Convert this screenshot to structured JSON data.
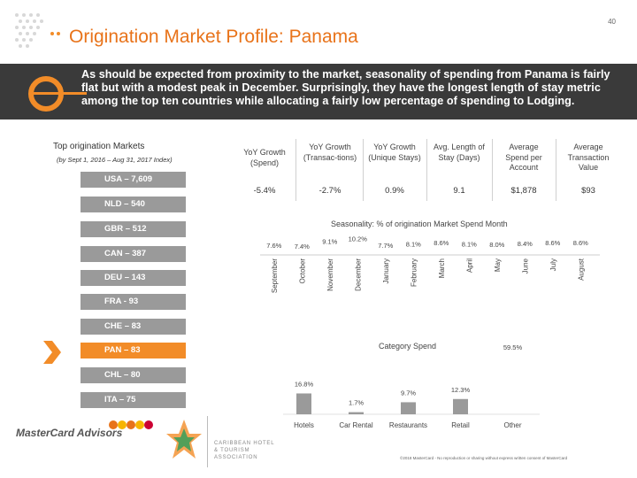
{
  "slide": {
    "number": "40",
    "title": "Origination Market Profile: Panama"
  },
  "banner": {
    "text": "As should be expected from proximity to the market, seasonality of spending from Panama is fairly flat but with a modest peak in December. Surprisingly, they have the longest length of stay metric among the top ten countries while allocating a fairly low percentage of spending to Lodging."
  },
  "sidebar": {
    "heading": "Top origination Markets",
    "subheading": "(by Sept 1, 2016 – Aug 31, 2017 Index)",
    "markets": [
      {
        "label": "USA – 7,609"
      },
      {
        "label": "NLD – 540"
      },
      {
        "label": "GBR – 512"
      },
      {
        "label": "CAN – 387"
      },
      {
        "label": "DEU – 143"
      },
      {
        "label": "FRA - 93"
      },
      {
        "label": "CHE – 83"
      },
      {
        "label": "PAN – 83",
        "selected": true
      },
      {
        "label": "CHL – 80"
      },
      {
        "label": "ITA – 75"
      }
    ]
  },
  "metrics": [
    {
      "header": "YoY Growth (Spend)",
      "value": "-5.4%"
    },
    {
      "header": "YoY Growth (Transac-tions)",
      "value": "-2.7%"
    },
    {
      "header": "YoY Growth (Unique Stays)",
      "value": "0.9%"
    },
    {
      "header": "Avg. Length of Stay (Days)",
      "value": "9.1"
    },
    {
      "header": "Average Spend per Account",
      "value": "$1,878"
    },
    {
      "header": "Average Transaction Value",
      "value": "$93"
    }
  ],
  "chart_data": [
    {
      "type": "bar",
      "title": "Seasonality: % of origination Market Spend Month",
      "categories": [
        "September",
        "October",
        "November",
        "December",
        "January",
        "February",
        "March",
        "April",
        "May",
        "June",
        "July",
        "August"
      ],
      "values": [
        7.6,
        7.4,
        9.1,
        10.2,
        7.7,
        8.1,
        8.6,
        8.1,
        8.0,
        8.4,
        8.6,
        8.6
      ],
      "labels": [
        "7.6%",
        "7.4%",
        "9.1%",
        "10.2%",
        "7.7%",
        "8.1%",
        "8.6%",
        "8.1%",
        "8.0%",
        "8.4%",
        "8.6%",
        "8.6%"
      ],
      "ylim": [
        0,
        12
      ],
      "bar_color": "#7a7a7a"
    },
    {
      "type": "bar",
      "title": "Category Spend",
      "categories": [
        "Hotels",
        "Car Rental",
        "Restaurants",
        "Retail",
        "Other"
      ],
      "values": [
        16.8,
        1.7,
        9.7,
        12.3,
        59.5
      ],
      "labels": [
        "16.8%",
        "1.7%",
        "9.7%",
        "12.3%",
        "59.5%"
      ],
      "ylim": [
        0,
        140
      ],
      "bar_color": "#9a9a9a"
    }
  ],
  "footer": {
    "note": "©2018 MasterCard - No reproduction or sharing without express written consent of MasterCard",
    "brand": "MasterCard Advisors",
    "partner": "CARIBBEAN HOTEL & TOURISM ASSOCIATION"
  },
  "colors": {
    "accent": "#f28c28",
    "title": "#e8731a",
    "banner": "#3a3a3a",
    "market_bar": "#9a9a9a"
  }
}
